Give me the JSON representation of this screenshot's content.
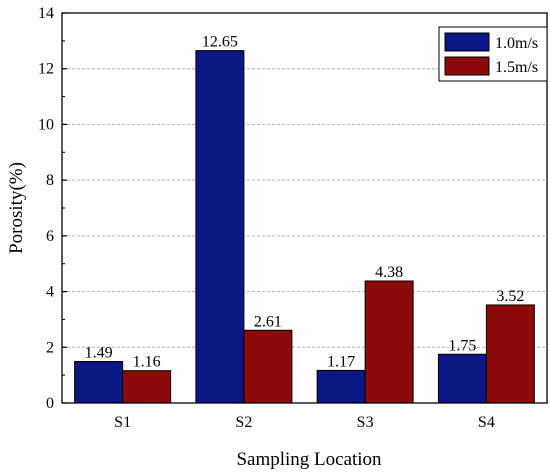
{
  "chart_data": {
    "type": "bar",
    "xlabel": "Sampling Location",
    "ylabel": "Porosity(%)",
    "categories": [
      "S1",
      "S2",
      "S3",
      "S4"
    ],
    "ylim": [
      0,
      14
    ],
    "yticks": [
      0,
      2,
      4,
      6,
      8,
      10,
      12,
      14
    ],
    "grid": "horizontal dashed",
    "legend_position": "top-right",
    "series": [
      {
        "name": "1.0m/s",
        "color": "#0b1785",
        "values": [
          1.49,
          12.65,
          1.17,
          1.75
        ],
        "labels": [
          "1.49",
          "12.65",
          "1.17",
          "1.75"
        ]
      },
      {
        "name": "1.5m/s",
        "color": "#8b0a0a",
        "values": [
          1.16,
          2.61,
          4.38,
          3.52
        ],
        "labels": [
          "1.16",
          "2.61",
          "4.38",
          "3.52"
        ]
      }
    ]
  }
}
